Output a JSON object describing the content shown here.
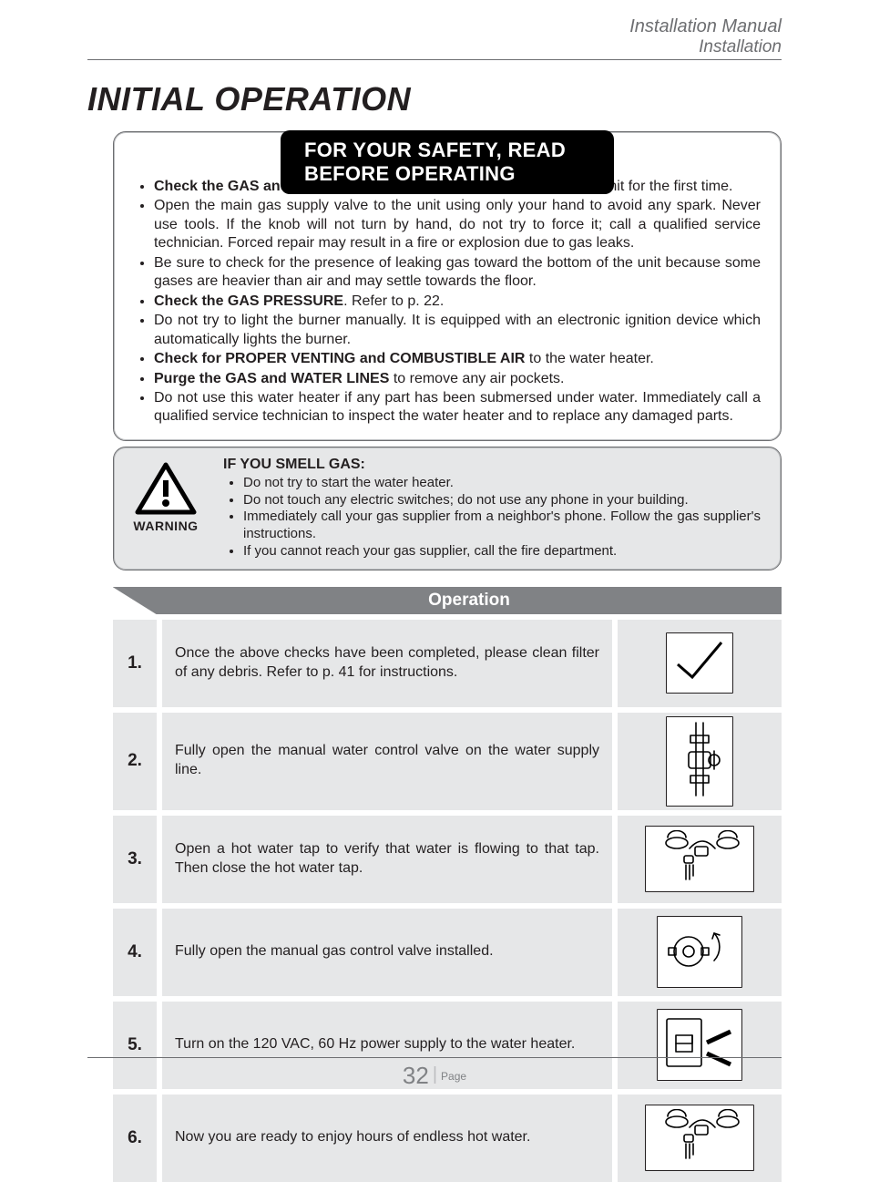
{
  "header": {
    "line1": "Installation Manual",
    "line2": "Installation"
  },
  "title": "INITIAL OPERATION",
  "safety": {
    "banner": "FOR YOUR SAFETY, READ BEFORE OPERATING",
    "items": [
      {
        "bold": "Check the GAS and WATER CONNECTIONS",
        "rest": " for leaks before firing unit for the first time."
      },
      {
        "bold": "",
        "rest": "Open the main gas supply valve to the unit using only your hand to avoid any spark.  Never use tools.  If the knob will not turn by hand, do not try to force it; call a qualified service technician. Forced repair may result in a fire or explosion due to gas leaks."
      },
      {
        "bold": "",
        "rest": "Be sure to check for the presence of leaking gas toward the bottom of the unit because some gases are heavier than air and may settle towards the floor."
      },
      {
        "bold": "Check the GAS PRESSURE",
        "rest": ". Refer to p. 22."
      },
      {
        "bold": "",
        "rest": "Do not try to light the burner manually.  It is equipped with an electronic ignition device which automatically lights the burner."
      },
      {
        "bold": "Check for PROPER VENTING and COMBUSTIBLE AIR",
        "rest": " to the water heater."
      },
      {
        "bold": "Purge the GAS and WATER LINES",
        "rest": " to remove any air pockets."
      },
      {
        "bold": "",
        "rest": "Do not use this water heater if any part has been submersed under water.  Immediately call a qualified service technician to inspect the water heater and to replace any damaged parts."
      }
    ]
  },
  "warning": {
    "label": "WARNING",
    "lead": "IF YOU SMELL GAS:",
    "items": [
      "Do not try to start the water heater.",
      "Do not touch any electric switches; do not use any phone in your building.",
      "Immediately call your gas supplier from a neighbor's phone.  Follow the gas supplier's instructions.",
      "If you cannot reach your gas supplier, call the fire department."
    ]
  },
  "operation": {
    "header": "Operation",
    "rows": [
      {
        "n": "1.",
        "text": "Once the above checks have been completed, please clean filter of any debris.  Refer to p. 41 for instructions.",
        "icon": "check"
      },
      {
        "n": "2.",
        "text": "Fully open the manual water control valve on the water supply line.",
        "icon": "valve-water"
      },
      {
        "n": "3.",
        "text": "Open a hot water tap to verify that water is flowing to that tap.  Then close the hot water tap.",
        "icon": "faucet"
      },
      {
        "n": "4.",
        "text": "Fully open the manual gas control valve installed.",
        "icon": "valve-gas"
      },
      {
        "n": "5.",
        "text": "Turn on the 120 VAC, 60 Hz power supply to the water heater.",
        "icon": "switch"
      },
      {
        "n": "6.",
        "text": "Now you are ready to enjoy hours of endless hot water.",
        "icon": "faucet2"
      }
    ]
  },
  "footer": {
    "page": "32",
    "label": "Page"
  },
  "colors": {
    "text": "#231f20",
    "grey": "#6d6e71",
    "bar": "#808285",
    "shade": "#e6e7e8"
  }
}
